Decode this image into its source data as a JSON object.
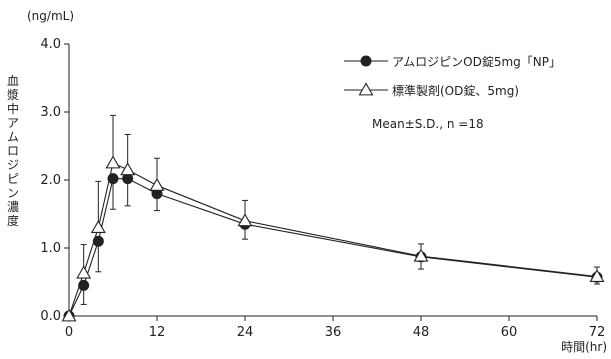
{
  "chart_data": {
    "type": "line",
    "y_unit_label": "(ng/mL)",
    "ylabel": "血漿中アムロジピン濃度",
    "xlabel": "時間(hr)",
    "x_ticks": [
      0,
      12,
      24,
      36,
      48,
      60,
      72
    ],
    "y_ticks": [
      "0.0",
      "1.0",
      "2.0",
      "3.0",
      "4.0"
    ],
    "xlim": [
      0,
      72
    ],
    "ylim": [
      0,
      4.0
    ],
    "grid": false,
    "legend_position": "top-right",
    "note": "Mean±S.D., n =18",
    "x": [
      0,
      2,
      4,
      6,
      8,
      12,
      24,
      48,
      72
    ],
    "series": [
      {
        "name": "アムロジピンOD錠5mg「NP」",
        "marker": "filled-circle",
        "values": [
          0,
          0.45,
          1.1,
          2.02,
          2.02,
          1.8,
          1.35,
          0.87,
          0.57
        ],
        "sd": [
          0,
          0.28,
          0.45,
          0.45,
          0.4,
          0.25,
          0.22,
          0.18,
          0.1
        ]
      },
      {
        "name": "標準製剤(OD錠、5mg)",
        "marker": "open-triangle",
        "values": [
          0,
          0.63,
          1.3,
          2.25,
          2.15,
          1.92,
          1.4,
          0.88,
          0.58
        ],
        "sd": [
          0,
          0.42,
          0.68,
          0.7,
          0.52,
          0.4,
          0.3,
          0.18,
          0.14
        ]
      }
    ]
  },
  "colors": {
    "line": "#222222",
    "marker_fill_open": "#ffffff"
  }
}
